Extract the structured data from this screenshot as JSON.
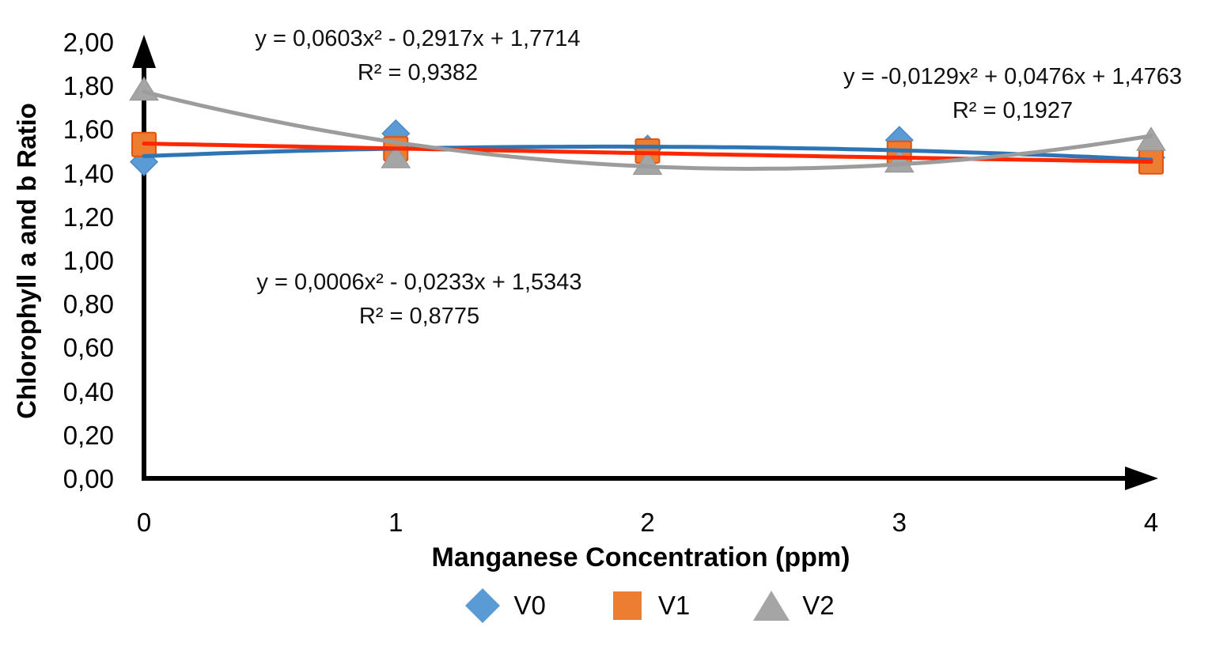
{
  "chart_data": {
    "type": "scatter",
    "title": "",
    "xlabel": "Manganese Concentration (ppm)",
    "ylabel": "Chlorophyll a and b Ratio",
    "x": [
      0,
      1,
      2,
      3,
      4
    ],
    "x_tick_labels": [
      "0",
      "1",
      "2",
      "3",
      "4"
    ],
    "y_tick_labels": [
      "0,00",
      "0,20",
      "0,40",
      "0,60",
      "0,80",
      "1,00",
      "1,20",
      "1,40",
      "1,60",
      "1,80",
      "2,00"
    ],
    "xlim": [
      0,
      4
    ],
    "ylim": [
      0,
      2.0
    ],
    "y_tick_step": 0.2,
    "decimal_separator": ",",
    "grid": false,
    "legend_position": "bottom-center",
    "axis_color": "#000000",
    "background_color": "#FFFFFF",
    "series": [
      {
        "name": "V0",
        "marker": "diamond",
        "marker_color": "#5B9BD5",
        "marker_border_color": "#4A8BC7",
        "trendline_color": "#2E75B6",
        "values": [
          1.45,
          1.58,
          1.51,
          1.55,
          1.47
        ],
        "trendline": {
          "type": "polynomial2",
          "coeffs": [
            -0.0129,
            0.0476,
            1.4763
          ],
          "equation_label": "y = -0,0129x² + 0,0476x + 1,4763",
          "r2_label": "R² = 0,1927"
        }
      },
      {
        "name": "V1",
        "marker": "square",
        "marker_color": "#ED7D31",
        "marker_border_color": "#E2540E",
        "trendline_color": "#FF2600",
        "values": [
          1.53,
          1.51,
          1.5,
          1.49,
          1.45
        ],
        "trendline": {
          "type": "polynomial2",
          "coeffs": [
            0.0006,
            -0.0233,
            1.5343
          ],
          "equation_label": "y = 0,0006x² - 0,0233x + 1,5343",
          "r2_label": "R² = 0,8775"
        }
      },
      {
        "name": "V2",
        "marker": "triangle",
        "marker_color": "#A5A5A5",
        "marker_border_color": "#949494",
        "trendline_color": "#9C9C9C",
        "values": [
          1.78,
          1.47,
          1.44,
          1.45,
          1.55
        ],
        "trendline": {
          "type": "polynomial2",
          "coeffs": [
            0.0603,
            -0.2917,
            1.7714
          ],
          "equation_label": "y = 0,0603x² - 0,2917x + 1,7714",
          "r2_label": "R² = 0,9382"
        }
      }
    ]
  }
}
